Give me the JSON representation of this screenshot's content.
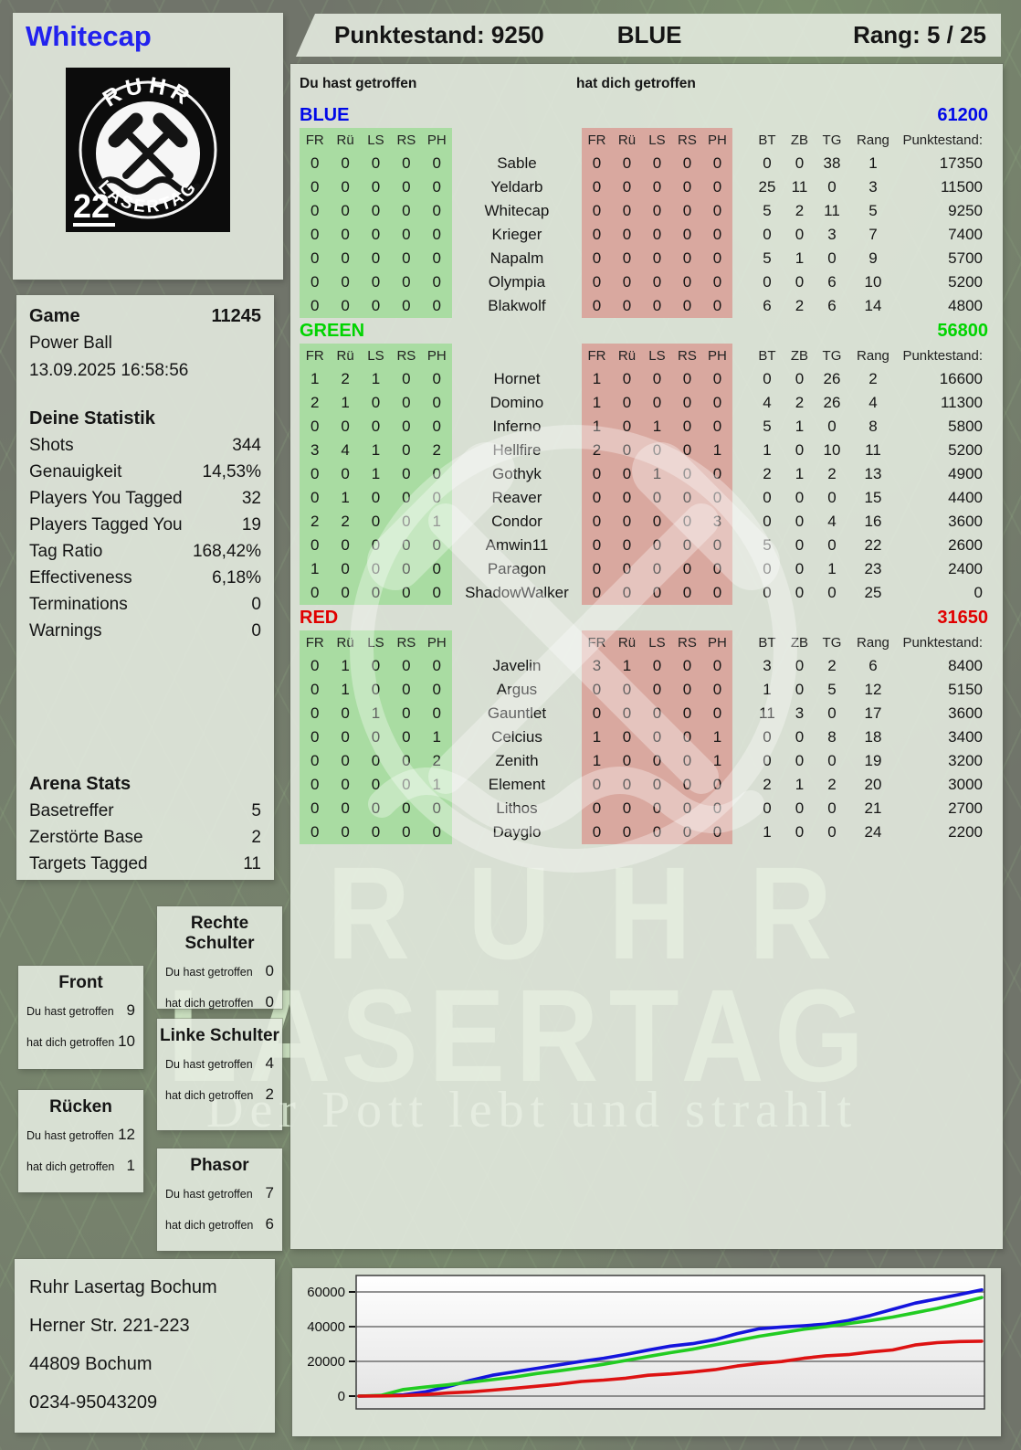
{
  "header": {
    "player": "Whitecap",
    "points_label": "Punktestand: 9250",
    "team": "BLUE",
    "rank_label": "Rang: 5 / 25"
  },
  "logo": {
    "arc_top": "RUHR",
    "arc_bottom": "LASERTAG",
    "number": "22"
  },
  "watermark": {
    "line1": "RUHR",
    "line2": "LASERTAG",
    "tagline": "Der Pott lebt und strahlt"
  },
  "game": {
    "label": "Game",
    "id": "11245",
    "mode": "Power Ball",
    "datetime": "13.09.2025 16:58:56"
  },
  "stats": {
    "title": "Deine Statistik",
    "rows": [
      [
        "Shots",
        "344"
      ],
      [
        "Genauigkeit",
        "14,53%"
      ],
      [
        "Players You Tagged",
        "32"
      ],
      [
        "Players Tagged You",
        "19"
      ],
      [
        "Tag Ratio",
        "168,42%"
      ],
      [
        "Effectiveness",
        "6,18%"
      ],
      [
        "Terminations",
        "0"
      ],
      [
        "Warnings",
        "0"
      ]
    ]
  },
  "arena": {
    "title": "Arena Stats",
    "rows": [
      [
        "Basetreffer",
        "5"
      ],
      [
        "Zerstörte Base",
        "2"
      ],
      [
        "Targets Tagged",
        "11"
      ]
    ]
  },
  "columns": {
    "hit": "Du hast getroffen",
    "got": "hat dich getroffen",
    "body": [
      "FR",
      "Rü",
      "LS",
      "RS",
      "PH"
    ],
    "extra": [
      "BT",
      "ZB",
      "TG",
      "Rang",
      "Punktestand:"
    ]
  },
  "teams": [
    {
      "name": "BLUE",
      "color": "#0008e8",
      "total": "61200",
      "players": [
        {
          "name": "Sable",
          "hit": [
            0,
            0,
            0,
            0,
            0
          ],
          "got": [
            0,
            0,
            0,
            0,
            0
          ],
          "bt": 0,
          "zb": 0,
          "tg": 38,
          "rang": 1,
          "points": "17350"
        },
        {
          "name": "Yeldarb",
          "hit": [
            0,
            0,
            0,
            0,
            0
          ],
          "got": [
            0,
            0,
            0,
            0,
            0
          ],
          "bt": 25,
          "zb": 11,
          "tg": 0,
          "rang": 3,
          "points": "11500"
        },
        {
          "name": "Whitecap",
          "hit": [
            0,
            0,
            0,
            0,
            0
          ],
          "got": [
            0,
            0,
            0,
            0,
            0
          ],
          "bt": 5,
          "zb": 2,
          "tg": 11,
          "rang": 5,
          "points": "9250"
        },
        {
          "name": "Krieger",
          "hit": [
            0,
            0,
            0,
            0,
            0
          ],
          "got": [
            0,
            0,
            0,
            0,
            0
          ],
          "bt": 0,
          "zb": 0,
          "tg": 3,
          "rang": 7,
          "points": "7400"
        },
        {
          "name": "Napalm",
          "hit": [
            0,
            0,
            0,
            0,
            0
          ],
          "got": [
            0,
            0,
            0,
            0,
            0
          ],
          "bt": 5,
          "zb": 1,
          "tg": 0,
          "rang": 9,
          "points": "5700"
        },
        {
          "name": "Olympia",
          "hit": [
            0,
            0,
            0,
            0,
            0
          ],
          "got": [
            0,
            0,
            0,
            0,
            0
          ],
          "bt": 0,
          "zb": 0,
          "tg": 6,
          "rang": 10,
          "points": "5200"
        },
        {
          "name": "Blakwolf",
          "hit": [
            0,
            0,
            0,
            0,
            0
          ],
          "got": [
            0,
            0,
            0,
            0,
            0
          ],
          "bt": 6,
          "zb": 2,
          "tg": 6,
          "rang": 14,
          "points": "4800"
        }
      ]
    },
    {
      "name": "GREEN",
      "color": "#00d400",
      "total": "56800",
      "players": [
        {
          "name": "Hornet",
          "hit": [
            1,
            2,
            1,
            0,
            0
          ],
          "got": [
            1,
            0,
            0,
            0,
            0
          ],
          "bt": 0,
          "zb": 0,
          "tg": 26,
          "rang": 2,
          "points": "16600"
        },
        {
          "name": "Domino",
          "hit": [
            2,
            1,
            0,
            0,
            0
          ],
          "got": [
            1,
            0,
            0,
            0,
            0
          ],
          "bt": 4,
          "zb": 2,
          "tg": 26,
          "rang": 4,
          "points": "11300"
        },
        {
          "name": "Inferno",
          "hit": [
            0,
            0,
            0,
            0,
            0
          ],
          "got": [
            1,
            0,
            1,
            0,
            0
          ],
          "bt": 5,
          "zb": 1,
          "tg": 0,
          "rang": 8,
          "points": "5800"
        },
        {
          "name": "Hellfire",
          "hit": [
            3,
            4,
            1,
            0,
            2
          ],
          "got": [
            2,
            0,
            0,
            0,
            1
          ],
          "bt": 1,
          "zb": 0,
          "tg": 10,
          "rang": 11,
          "points": "5200"
        },
        {
          "name": "Gothyk",
          "hit": [
            0,
            0,
            1,
            0,
            0
          ],
          "got": [
            0,
            0,
            1,
            0,
            0
          ],
          "bt": 2,
          "zb": 1,
          "tg": 2,
          "rang": 13,
          "points": "4900"
        },
        {
          "name": "Reaver",
          "hit": [
            0,
            1,
            0,
            0,
            0
          ],
          "got": [
            0,
            0,
            0,
            0,
            0
          ],
          "bt": 0,
          "zb": 0,
          "tg": 0,
          "rang": 15,
          "points": "4400"
        },
        {
          "name": "Condor",
          "hit": [
            2,
            2,
            0,
            0,
            1
          ],
          "got": [
            0,
            0,
            0,
            0,
            3
          ],
          "bt": 0,
          "zb": 0,
          "tg": 4,
          "rang": 16,
          "points": "3600"
        },
        {
          "name": "Amwin11",
          "hit": [
            0,
            0,
            0,
            0,
            0
          ],
          "got": [
            0,
            0,
            0,
            0,
            0
          ],
          "bt": 5,
          "zb": 0,
          "tg": 0,
          "rang": 22,
          "points": "2600"
        },
        {
          "name": "Paragon",
          "hit": [
            1,
            0,
            0,
            0,
            0
          ],
          "got": [
            0,
            0,
            0,
            0,
            0
          ],
          "bt": 0,
          "zb": 0,
          "tg": 1,
          "rang": 23,
          "points": "2400"
        },
        {
          "name": "ShadowWalker",
          "hit": [
            0,
            0,
            0,
            0,
            0
          ],
          "got": [
            0,
            0,
            0,
            0,
            0
          ],
          "bt": 0,
          "zb": 0,
          "tg": 0,
          "rang": 25,
          "points": "0"
        }
      ]
    },
    {
      "name": "RED",
      "color": "#e00000",
      "total": "31650",
      "players": [
        {
          "name": "Javelin",
          "hit": [
            0,
            1,
            0,
            0,
            0
          ],
          "got": [
            3,
            1,
            0,
            0,
            0
          ],
          "bt": 3,
          "zb": 0,
          "tg": 2,
          "rang": 6,
          "points": "8400"
        },
        {
          "name": "Argus",
          "hit": [
            0,
            1,
            0,
            0,
            0
          ],
          "got": [
            0,
            0,
            0,
            0,
            0
          ],
          "bt": 1,
          "zb": 0,
          "tg": 5,
          "rang": 12,
          "points": "5150"
        },
        {
          "name": "Gauntlet",
          "hit": [
            0,
            0,
            1,
            0,
            0
          ],
          "got": [
            0,
            0,
            0,
            0,
            0
          ],
          "bt": 11,
          "zb": 3,
          "tg": 0,
          "rang": 17,
          "points": "3600"
        },
        {
          "name": "Celcius",
          "hit": [
            0,
            0,
            0,
            0,
            1
          ],
          "got": [
            1,
            0,
            0,
            0,
            1
          ],
          "bt": 0,
          "zb": 0,
          "tg": 8,
          "rang": 18,
          "points": "3400"
        },
        {
          "name": "Zenith",
          "hit": [
            0,
            0,
            0,
            0,
            2
          ],
          "got": [
            1,
            0,
            0,
            0,
            1
          ],
          "bt": 0,
          "zb": 0,
          "tg": 0,
          "rang": 19,
          "points": "3200"
        },
        {
          "name": "Element",
          "hit": [
            0,
            0,
            0,
            0,
            1
          ],
          "got": [
            0,
            0,
            0,
            0,
            0
          ],
          "bt": 2,
          "zb": 1,
          "tg": 2,
          "rang": 20,
          "points": "3000"
        },
        {
          "name": "Lithos",
          "hit": [
            0,
            0,
            0,
            0,
            0
          ],
          "got": [
            0,
            0,
            0,
            0,
            0
          ],
          "bt": 0,
          "zb": 0,
          "tg": 0,
          "rang": 21,
          "points": "2700"
        },
        {
          "name": "Dayglo",
          "hit": [
            0,
            0,
            0,
            0,
            0
          ],
          "got": [
            0,
            0,
            0,
            0,
            0
          ],
          "bt": 1,
          "zb": 0,
          "tg": 0,
          "rang": 24,
          "points": "2200"
        }
      ]
    }
  ],
  "body_panels": {
    "rechte": {
      "title": "Rechte Schulter",
      "hit_label": "Du hast getroffen",
      "got_label": "hat dich getroffen",
      "hit": "0",
      "got": "0"
    },
    "front": {
      "title": "Front",
      "hit_label": "Du hast getroffen",
      "got_label": "hat dich getroffen",
      "hit": "9",
      "got": "10"
    },
    "linke": {
      "title": "Linke Schulter",
      "hit_label": "Du hast getroffen",
      "got_label": "hat dich getroffen",
      "hit": "4",
      "got": "2"
    },
    "ruecken": {
      "title": "Rücken",
      "hit_label": "Du hast getroffen",
      "got_label": "hat dich getroffen",
      "hit": "12",
      "got": "1"
    },
    "phasor": {
      "title": "Phasor",
      "hit_label": "Du hast getroffen",
      "got_label": "hat dich getroffen",
      "hit": "7",
      "got": "6"
    }
  },
  "address": {
    "lines": [
      "Ruhr Lasertag Bochum",
      "Herner Str. 221-223",
      "44809 Bochum",
      "0234-95043209"
    ]
  },
  "chart_data": {
    "type": "line",
    "title": "",
    "xlabel": "",
    "ylabel": "",
    "y_ticks": [
      0,
      20000,
      40000,
      60000
    ],
    "ylim": [
      0,
      63000
    ],
    "grid": "horizontal",
    "legend_position": "none",
    "series": [
      {
        "name": "BLUE",
        "color": "#1414dd",
        "values": [
          0,
          200,
          700,
          2500,
          5500,
          9000,
          12000,
          14000,
          16000,
          18000,
          20000,
          21800,
          24000,
          26500,
          28800,
          30200,
          32500,
          36000,
          38800,
          39800,
          40500,
          41500,
          43500,
          46500,
          50000,
          53500,
          56000,
          58500,
          61200
        ]
      },
      {
        "name": "GREEN",
        "color": "#22cc22",
        "values": [
          0,
          400,
          3800,
          5200,
          6500,
          8000,
          9500,
          11000,
          13000,
          14600,
          16300,
          18300,
          20500,
          22800,
          25000,
          27000,
          29500,
          32000,
          34500,
          36500,
          38500,
          40000,
          41800,
          43500,
          45500,
          48000,
          50500,
          53500,
          56800
        ]
      },
      {
        "name": "RED",
        "color": "#dd1212",
        "values": [
          0,
          100,
          300,
          900,
          1800,
          2400,
          3400,
          4500,
          5700,
          6900,
          8400,
          9200,
          10300,
          12000,
          12800,
          13900,
          15200,
          17300,
          18800,
          19900,
          21800,
          23200,
          23900,
          25400,
          26600,
          29400,
          30800,
          31400,
          31650
        ]
      }
    ]
  }
}
